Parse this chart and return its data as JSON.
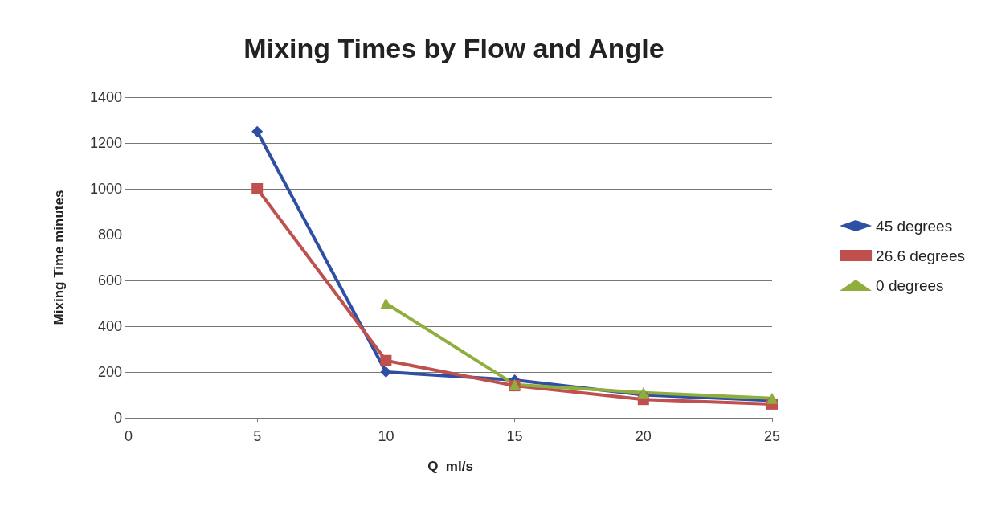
{
  "chart_data": {
    "type": "line",
    "title": "Mixing Times by Flow and Angle",
    "xlabel": "Q  ml/s",
    "ylabel": "Mixing Time minutes",
    "x": [
      5,
      10,
      15,
      20,
      25
    ],
    "series": [
      {
        "name": "45 degrees",
        "color": "#2e4fa3",
        "marker": "diamond",
        "values": [
          1250,
          200,
          165,
          100,
          75
        ]
      },
      {
        "name": "26.6 degrees",
        "color": "#c0504d",
        "marker": "square",
        "values": [
          1000,
          250,
          140,
          80,
          60
        ]
      },
      {
        "name": "0 degrees",
        "color": "#8fae3e",
        "marker": "triangle",
        "values": [
          null,
          500,
          145,
          110,
          85
        ]
      }
    ],
    "xlim": [
      0,
      25
    ],
    "xticks": [
      0,
      5,
      10,
      15,
      20,
      25
    ],
    "ylim": [
      0,
      1400
    ],
    "yticks": [
      0,
      200,
      400,
      600,
      800,
      1000,
      1200,
      1400
    ],
    "grid": "y",
    "legend": "right"
  }
}
